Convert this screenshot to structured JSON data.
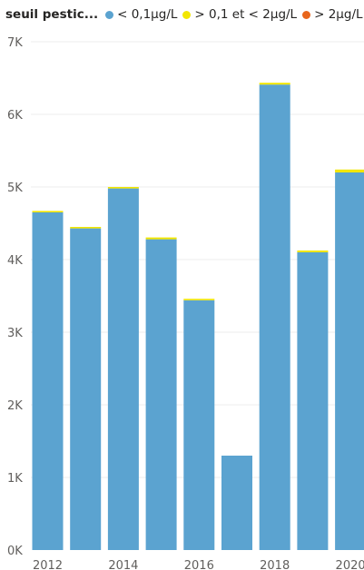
{
  "legend": {
    "title": "seuil pestic...",
    "items": [
      {
        "label": "< 0,1µg/L",
        "color": "#5ba3d0"
      },
      {
        "label": "> 0,1 et < 2µg/L",
        "color": "#f2e600"
      },
      {
        "label": "> 2µg/L",
        "color": "#e8661c"
      }
    ]
  },
  "chart_data": {
    "type": "bar",
    "stacked": true,
    "categories": [
      "2012",
      "2013",
      "2014",
      "2015",
      "2016",
      "2017",
      "2018",
      "2019",
      "2020"
    ],
    "x_tick_labels": [
      "2012",
      "2014",
      "2016",
      "2018",
      "2020"
    ],
    "y_tick_labels": [
      "0K",
      "1K",
      "2K",
      "3K",
      "4K",
      "5K",
      "6K",
      "7K"
    ],
    "ylim": [
      0,
      7000
    ],
    "grid": true,
    "legend_position": "top-left",
    "series": [
      {
        "name": "< 0,1µg/L",
        "color": "#5ba3d0",
        "values": [
          4650,
          4430,
          4980,
          4280,
          3440,
          1300,
          6410,
          4100,
          5200
        ]
      },
      {
        "name": "> 0,1 et < 2µg/L",
        "color": "#f2e600",
        "values": [
          20,
          20,
          20,
          25,
          20,
          0,
          25,
          25,
          40
        ]
      },
      {
        "name": "> 2µg/L",
        "color": "#e8661c",
        "values": [
          0,
          0,
          0,
          0,
          0,
          0,
          0,
          0,
          0
        ]
      }
    ]
  }
}
